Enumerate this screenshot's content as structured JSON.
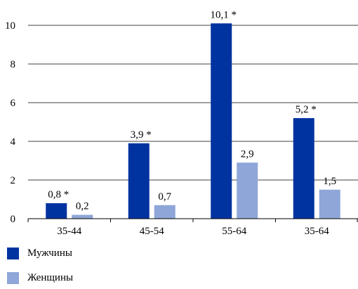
{
  "chart_data": {
    "type": "bar",
    "categories": [
      "35-44",
      "45-54",
      "55-64",
      "35-64"
    ],
    "series": [
      {
        "name": "Мужчины",
        "color": "#0033A0",
        "values": [
          0.8,
          3.9,
          10.1,
          5.2
        ],
        "labels": [
          "0,8 *",
          "3,9 *",
          "10,1 *",
          "5,2 *"
        ]
      },
      {
        "name": "Женщины",
        "color": "#8EA6D8",
        "values": [
          0.2,
          0.7,
          2.9,
          1.5
        ],
        "labels": [
          "0,2",
          "0,7",
          "2,9",
          "1,5"
        ]
      }
    ],
    "ylim": [
      0,
      10
    ],
    "yticks": [
      0,
      2,
      4,
      6,
      8,
      10
    ],
    "grid": true,
    "legend": "bottom-left",
    "title": "",
    "xlabel": "",
    "ylabel": ""
  }
}
